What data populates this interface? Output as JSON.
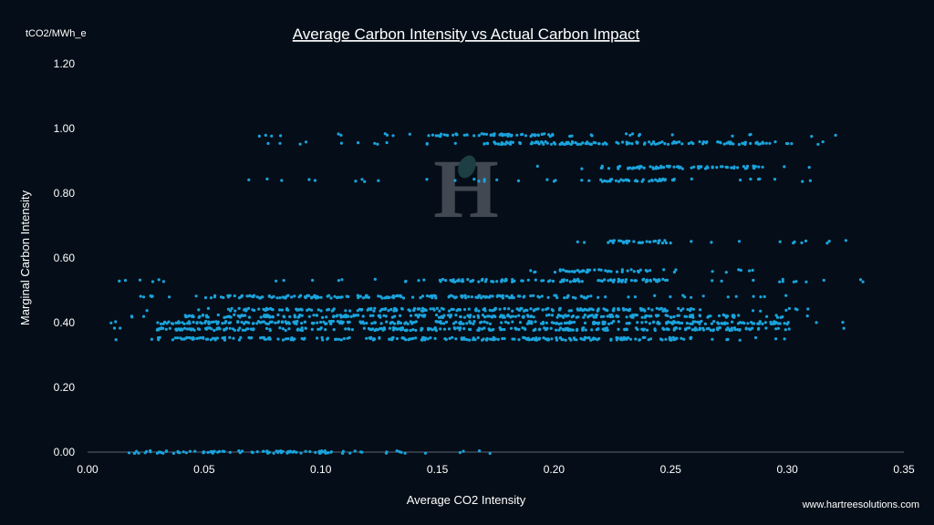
{
  "chart_data": {
    "type": "scatter",
    "title": "Average Carbon Intensity vs Actual Carbon Impact",
    "xlabel": "Average CO2 Intensity",
    "ylabel": "Marginal Carbon Intensity",
    "y_unit": "tCO2/MWh_e",
    "xlim": [
      0,
      0.35
    ],
    "ylim": [
      0,
      1.2
    ],
    "x_ticks": [
      "0.00",
      "0.05",
      "0.10",
      "0.15",
      "0.20",
      "0.25",
      "0.30",
      "0.35"
    ],
    "y_ticks": [
      "0.00",
      "0.20",
      "0.40",
      "0.60",
      "0.80",
      "1.00",
      "1.20"
    ],
    "grid": false,
    "marker_color": "#1aa3dc",
    "bands": [
      {
        "y": 0.0,
        "x_range": [
          0.005,
          0.175
        ],
        "dense_range": [
          0.02,
          0.11
        ]
      },
      {
        "y": 0.35,
        "x_range": [
          0.008,
          0.3
        ],
        "dense_range": [
          0.03,
          0.26
        ]
      },
      {
        "y": 0.38,
        "x_range": [
          0.008,
          0.33
        ],
        "dense_range": [
          0.03,
          0.29
        ]
      },
      {
        "y": 0.4,
        "x_range": [
          0.01,
          0.335
        ],
        "dense_range": [
          0.03,
          0.3
        ]
      },
      {
        "y": 0.42,
        "x_range": [
          0.008,
          0.32
        ],
        "dense_range": [
          0.04,
          0.28
        ]
      },
      {
        "y": 0.44,
        "x_range": [
          0.02,
          0.315
        ],
        "dense_range": [
          0.06,
          0.26
        ]
      },
      {
        "y": 0.48,
        "x_range": [
          0.02,
          0.31
        ],
        "dense_range": [
          0.05,
          0.22
        ]
      },
      {
        "y": 0.53,
        "x_range": [
          0.01,
          0.338
        ],
        "dense_range": [
          0.15,
          0.25
        ]
      },
      {
        "y": 0.56,
        "x_range": [
          0.18,
          0.29
        ],
        "dense_range": [
          0.2,
          0.24
        ]
      },
      {
        "y": 0.65,
        "x_range": [
          0.2,
          0.33
        ],
        "dense_range": [
          0.22,
          0.25
        ]
      },
      {
        "y": 0.84,
        "x_range": [
          0.065,
          0.31
        ],
        "dense_range": [
          0.22,
          0.26
        ]
      },
      {
        "y": 0.88,
        "x_range": [
          0.19,
          0.31
        ],
        "dense_range": [
          0.22,
          0.29
        ]
      },
      {
        "y": 0.955,
        "x_range": [
          0.065,
          0.32
        ],
        "dense_range": [
          0.17,
          0.3
        ]
      },
      {
        "y": 0.98,
        "x_range": [
          0.065,
          0.335
        ],
        "dense_range": [
          0.15,
          0.2
        ]
      }
    ]
  },
  "watermark": {
    "letters": "H"
  },
  "source": "www.hartreesolutions.com"
}
